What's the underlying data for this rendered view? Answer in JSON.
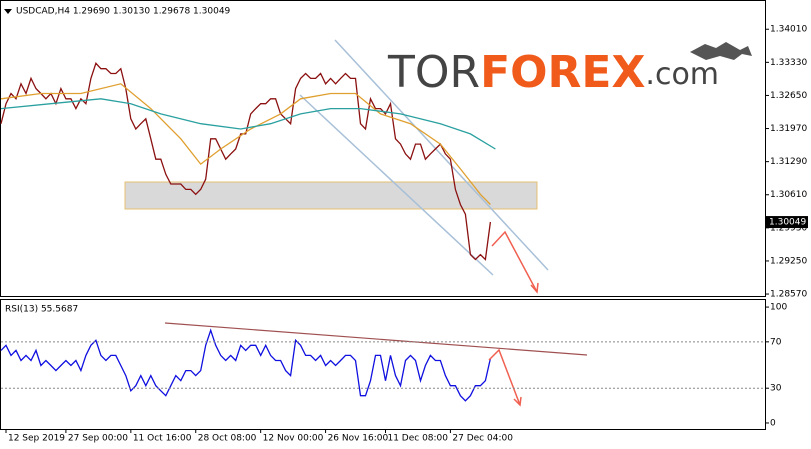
{
  "logo": {
    "tor": "TOR",
    "forex": "FOREX",
    "com": ".com"
  },
  "chart_data": [
    {
      "type": "line",
      "title": "USDCAD,H4  1.29690 1.30130 1.29678 1.30049",
      "xlim": [
        0,
        153
      ],
      "ylim": [
        1.2853,
        1.3459
      ],
      "yticks": [
        {
          "value": 1.3401,
          "label": "1.34010"
        },
        {
          "value": 1.3333,
          "label": "1.33330"
        },
        {
          "value": 1.3265,
          "label": "1.32650"
        },
        {
          "value": 1.3197,
          "label": "1.31970"
        },
        {
          "value": 1.3129,
          "label": "1.31290"
        },
        {
          "value": 1.3061,
          "label": "1.30610"
        },
        {
          "value": 1.2993,
          "label": "1.29930"
        },
        {
          "value": 1.2925,
          "label": "1.29250"
        },
        {
          "value": 1.2857,
          "label": "1.28570"
        }
      ],
      "last_price": 1.30049,
      "series": [
        {
          "color": "#8b1010",
          "values": [
            1.3207,
            1.3248,
            1.3269,
            1.3258,
            1.3289,
            1.3269,
            1.33,
            1.3279,
            1.3269,
            1.3258,
            1.3269,
            1.3248,
            1.3279,
            1.3258,
            1.3258,
            1.3238,
            1.3258,
            1.3248,
            1.33,
            1.3331,
            1.332,
            1.332,
            1.331,
            1.331,
            1.332,
            1.3279,
            1.3217,
            1.3196,
            1.3207,
            1.3217,
            1.3176,
            1.3134,
            1.3134,
            1.3103,
            1.3083,
            1.3083,
            1.3083,
            1.3072,
            1.3072,
            1.3062,
            1.3072,
            1.3093,
            1.3176,
            1.3176,
            1.3155,
            1.3134,
            1.3145,
            1.3155,
            1.3186,
            1.3186,
            1.3227,
            1.3238,
            1.3248,
            1.3248,
            1.3258,
            1.3258,
            1.3227,
            1.3217,
            1.3207,
            1.3279,
            1.33,
            1.331,
            1.33,
            1.33,
            1.331,
            1.3289,
            1.33,
            1.3289,
            1.33,
            1.331,
            1.33,
            1.33,
            1.3207,
            1.3196,
            1.3258,
            1.3238,
            1.3238,
            1.3227,
            1.3248,
            1.3176,
            1.3165,
            1.3145,
            1.3134,
            1.3165,
            1.3165,
            1.3134,
            1.3145,
            1.3155,
            1.3165,
            1.3145,
            1.3134,
            1.3072,
            1.3041,
            1.3021,
            1.2938,
            1.2928,
            1.2938,
            1.2928,
            1.3005
          ]
        },
        {
          "color": "#e0a030",
          "x": [
            0,
            8,
            16,
            24,
            30,
            36,
            40,
            44,
            50,
            56,
            60,
            66,
            71,
            76,
            82,
            88,
            92,
            96,
            98
          ],
          "values": [
            1.3258,
            1.3269,
            1.3269,
            1.3289,
            1.3238,
            1.3176,
            1.3124,
            1.3155,
            1.3196,
            1.3227,
            1.3258,
            1.3269,
            1.3269,
            1.3227,
            1.3207,
            1.3165,
            1.3114,
            1.3062,
            1.3041
          ]
        },
        {
          "color": "#2aa0a0",
          "x": [
            0,
            10,
            20,
            26,
            32,
            40,
            48,
            54,
            60,
            66,
            72,
            80,
            88,
            94,
            99
          ],
          "values": [
            1.3238,
            1.3248,
            1.3258,
            1.3248,
            1.3227,
            1.3207,
            1.3196,
            1.3207,
            1.3227,
            1.3238,
            1.3238,
            1.3227,
            1.3207,
            1.3186,
            1.3155
          ]
        }
      ]
    },
    {
      "type": "line",
      "title": "RSI(13) 55.5687",
      "xlim": [
        0,
        153
      ],
      "ylim": [
        -5.2,
        106.1
      ],
      "yticks": [
        0,
        30,
        70,
        100
      ],
      "levels": [
        30,
        70
      ],
      "xticks": [
        {
          "value": 1,
          "label": "12 Sep 2019"
        },
        {
          "value": 13,
          "label": "27 Sep 00:00"
        },
        {
          "value": 26,
          "label": "11 Oct 16:00"
        },
        {
          "value": 39,
          "label": "28 Oct 08:00"
        },
        {
          "value": 52,
          "label": "12 Nov 00:00"
        },
        {
          "value": 65,
          "label": "26 Nov 16:00"
        },
        {
          "value": 77,
          "label": "11 Dec 08:00"
        },
        {
          "value": 90,
          "label": "27 Dec 04:00"
        }
      ],
      "series": [
        {
          "color": "#1010e0",
          "values": [
            62.6,
            67.0,
            58.3,
            62.6,
            53.9,
            58.3,
            53.9,
            62.6,
            49.6,
            53.9,
            49.6,
            45.2,
            49.6,
            53.9,
            49.6,
            53.9,
            45.2,
            58.3,
            67.0,
            71.3,
            58.3,
            53.9,
            58.3,
            58.3,
            49.6,
            40.9,
            27.8,
            32.2,
            40.9,
            32.2,
            40.9,
            32.2,
            27.8,
            23.5,
            32.2,
            40.9,
            36.5,
            45.2,
            45.2,
            40.9,
            45.2,
            67.0,
            80.0,
            67.0,
            58.3,
            53.9,
            58.3,
            53.9,
            67.0,
            62.6,
            67.0,
            67.0,
            58.3,
            67.0,
            58.3,
            53.9,
            53.9,
            45.2,
            40.9,
            71.3,
            67.0,
            58.3,
            58.3,
            53.9,
            58.3,
            49.6,
            53.9,
            49.6,
            53.9,
            58.3,
            58.3,
            53.9,
            23.5,
            23.5,
            36.5,
            58.3,
            58.3,
            36.5,
            58.3,
            40.9,
            32.2,
            53.9,
            58.3,
            53.9,
            36.5,
            49.6,
            58.3,
            53.9,
            53.9,
            40.9,
            32.2,
            32.2,
            23.5,
            19.1,
            23.5,
            32.2,
            32.2,
            36.5,
            55.6
          ]
        }
      ]
    }
  ]
}
